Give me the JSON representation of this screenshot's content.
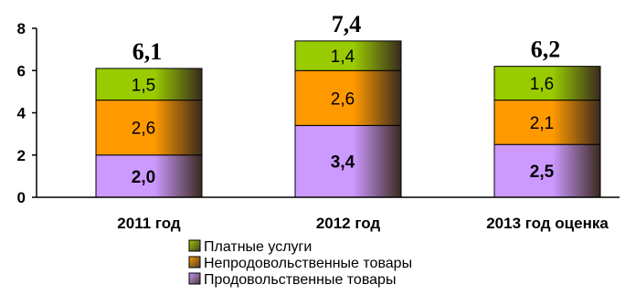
{
  "chart_data": {
    "type": "bar",
    "stacked": true,
    "categories": [
      "2011 год",
      "2012 год",
      "2013 год оценка"
    ],
    "series": [
      {
        "name": "Продовольственные товары",
        "values": [
          2.0,
          3.4,
          2.5
        ],
        "labels": [
          "2,0",
          "3,4",
          "2,5"
        ],
        "color": "#cc99ff"
      },
      {
        "name": "Непродовольственные товары",
        "values": [
          2.6,
          2.6,
          2.1
        ],
        "labels": [
          "2,6",
          "2,6",
          "2,1"
        ],
        "color": "#ff9900"
      },
      {
        "name": "Платные услуги",
        "values": [
          1.5,
          1.4,
          1.6
        ],
        "labels": [
          "1,5",
          "1,4",
          "1,6"
        ],
        "color": "#99cc00"
      }
    ],
    "totals": [
      "6,1",
      "7,4",
      "6,2"
    ],
    "ylim": [
      0,
      8
    ],
    "yticks": [
      0,
      2,
      4,
      6,
      8
    ],
    "legend_position": "bottom",
    "legend_order": [
      "Платные услуги",
      "Непродовольственные товары",
      "Продовольственные товары"
    ]
  }
}
